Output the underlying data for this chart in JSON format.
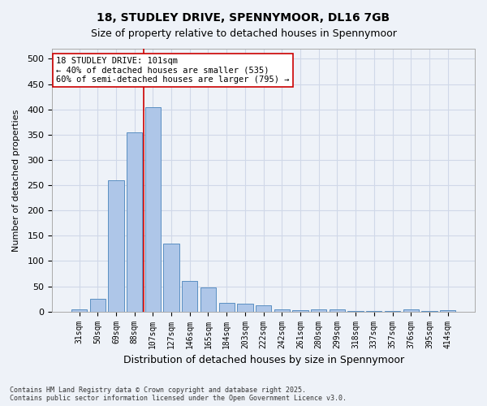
{
  "title1": "18, STUDLEY DRIVE, SPENNYMOOR, DL16 7GB",
  "title2": "Size of property relative to detached houses in Spennymoor",
  "xlabel": "Distribution of detached houses by size in Spennymoor",
  "ylabel": "Number of detached properties",
  "categories": [
    "31sqm",
    "50sqm",
    "69sqm",
    "88sqm",
    "107sqm",
    "127sqm",
    "146sqm",
    "165sqm",
    "184sqm",
    "203sqm",
    "222sqm",
    "242sqm",
    "261sqm",
    "280sqm",
    "299sqm",
    "318sqm",
    "337sqm",
    "357sqm",
    "376sqm",
    "395sqm",
    "414sqm"
  ],
  "values": [
    5,
    25,
    260,
    355,
    405,
    135,
    60,
    48,
    17,
    15,
    13,
    4,
    2,
    5,
    5,
    1,
    1,
    1,
    4,
    1,
    2
  ],
  "bar_color": "#aec6e8",
  "bar_edge_color": "#5a8fc2",
  "grid_color": "#d0d8e8",
  "background_color": "#eef2f8",
  "vline_x": 3.5,
  "vline_color": "#cc0000",
  "annotation_text": "18 STUDLEY DRIVE: 101sqm\n← 40% of detached houses are smaller (535)\n60% of semi-detached houses are larger (795) →",
  "annotation_box_color": "#ffffff",
  "annotation_box_edge": "#cc0000",
  "ylim": [
    0,
    520
  ],
  "yticks": [
    0,
    50,
    100,
    150,
    200,
    250,
    300,
    350,
    400,
    450,
    500
  ],
  "footnote": "Contains HM Land Registry data © Crown copyright and database right 2025.\nContains public sector information licensed under the Open Government Licence v3.0."
}
